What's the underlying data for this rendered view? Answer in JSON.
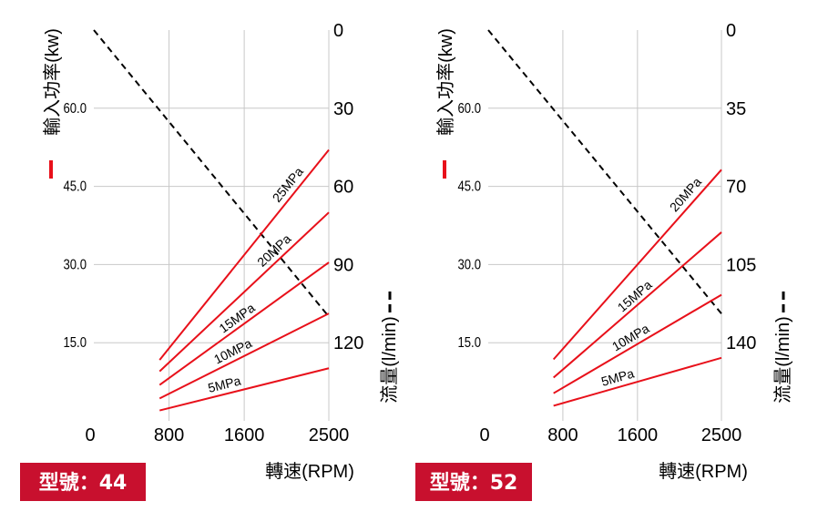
{
  "colors": {
    "power_line": "#e8101a",
    "flow_line": "#000000",
    "grid": "#c8c8c8",
    "badge": "#c8102e"
  },
  "chart_data": [
    {
      "type": "line",
      "model_label": "型號：44",
      "xlabel": "轉速(RPM)",
      "ylabel_left": "輸入功率(kw)",
      "ylabel_right": "流量(l/min)",
      "x_ticks": [
        "0",
        "800",
        "1600",
        "2500"
      ],
      "x_tick_values": [
        0,
        800,
        1600,
        2500
      ],
      "xlim": [
        0,
        2500
      ],
      "y_left_ticks": [
        "15.0",
        "30.0",
        "45.0",
        "60.0"
      ],
      "y_left_tick_values": [
        15,
        30,
        45,
        60
      ],
      "ylim_left": [
        0,
        75
      ],
      "y_right_ticks": [
        "0",
        "30",
        "60",
        "90",
        "120"
      ],
      "y_right_tick_values": [
        0,
        30,
        60,
        90,
        120
      ],
      "ylim_right": [
        150,
        0
      ],
      "grid": true,
      "power_series": [
        {
          "name": "25MPa",
          "x": [
            700,
            2500
          ],
          "y": [
            11.7,
            52.0
          ]
        },
        {
          "name": "20MPa",
          "x": [
            700,
            2500
          ],
          "y": [
            9.5,
            40.0
          ]
        },
        {
          "name": "15MPa",
          "x": [
            700,
            2500
          ],
          "y": [
            6.9,
            30.4
          ]
        },
        {
          "name": "10MPa",
          "x": [
            700,
            2500
          ],
          "y": [
            4.3,
            20.6
          ]
        },
        {
          "name": "5MPa",
          "x": [
            700,
            2500
          ],
          "y": [
            2.0,
            10.1
          ]
        }
      ],
      "flow_series": {
        "x": [
          0,
          2500
        ],
        "y": [
          0,
          110
        ]
      }
    },
    {
      "type": "line",
      "model_label": "型號：52",
      "xlabel": "轉速(RPM)",
      "ylabel_left": "輸入功率(kw)",
      "ylabel_right": "流量(l/min)",
      "x_ticks": [
        "0",
        "800",
        "1600",
        "2500"
      ],
      "x_tick_values": [
        0,
        800,
        1600,
        2500
      ],
      "xlim": [
        0,
        2500
      ],
      "y_left_ticks": [
        "15.0",
        "30.0",
        "45.0",
        "60.0"
      ],
      "y_left_tick_values": [
        15,
        30,
        45,
        60
      ],
      "ylim_left": [
        0,
        75
      ],
      "y_right_ticks": [
        "0",
        "35",
        "70",
        "105",
        "140"
      ],
      "y_right_tick_values": [
        0,
        35,
        70,
        105,
        140
      ],
      "ylim_right": [
        175,
        0
      ],
      "grid": true,
      "power_series": [
        {
          "name": "20MPa",
          "x": [
            700,
            2500
          ],
          "y": [
            11.8,
            48.2
          ]
        },
        {
          "name": "15MPa",
          "x": [
            700,
            2500
          ],
          "y": [
            8.3,
            36.2
          ]
        },
        {
          "name": "10MPa",
          "x": [
            700,
            2500
          ],
          "y": [
            5.3,
            24.2
          ]
        },
        {
          "name": "5MPa",
          "x": [
            700,
            2500
          ],
          "y": [
            2.9,
            12.1
          ]
        }
      ],
      "flow_series": {
        "x": [
          0,
          2500
        ],
        "y": [
          0,
          127
        ]
      }
    }
  ]
}
